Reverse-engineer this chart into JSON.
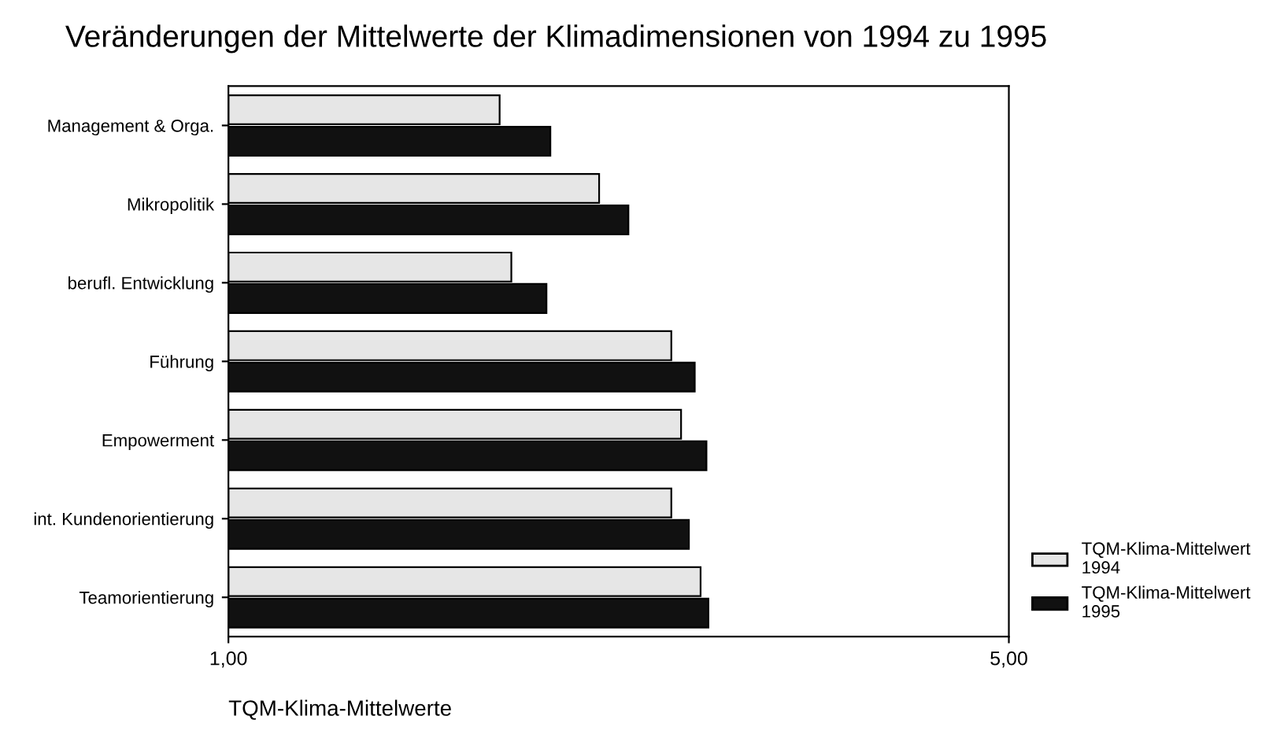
{
  "chart_data": {
    "type": "bar",
    "orientation": "horizontal",
    "title": "Veränderungen der Mittelwerte der Klimadimensionen von 1994 zu 1995",
    "xlabel": "TQM-Klima-Mittelwerte",
    "categories": [
      "Management & Orga.",
      "Mikropolitik",
      "berufl. Entwicklung",
      "Führung",
      "Empowerment",
      "int. Kundenorientierung",
      "Teamorientierung"
    ],
    "series": [
      {
        "name": "TQM-Klima-Mittelwert 1994",
        "color": "#e6e6e6",
        "values": [
          2.39,
          2.9,
          2.45,
          3.27,
          3.32,
          3.27,
          3.42
        ]
      },
      {
        "name": "TQM-Klima-Mittelwert 1995",
        "color": "#111111",
        "values": [
          2.65,
          3.05,
          2.63,
          3.39,
          3.45,
          3.36,
          3.46
        ]
      }
    ],
    "xlim": [
      1,
      5
    ],
    "xticks": [
      {
        "value": 1,
        "label": "1,00"
      },
      {
        "value": 5,
        "label": "5,00"
      }
    ],
    "grid": false,
    "legend": "right"
  }
}
